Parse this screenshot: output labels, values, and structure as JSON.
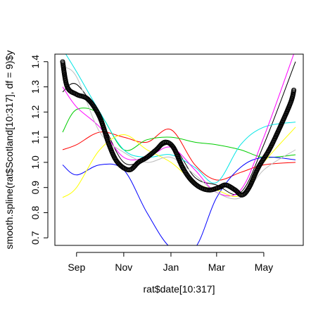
{
  "chart_data": {
    "type": "line",
    "title": "",
    "xlabel": "rat$date[10:317]",
    "ylabel": "smooth.spline(rat$Scotland[10:317], df = 9)$y",
    "x_axis": {
      "unit": "date",
      "ticks": [
        {
          "label": "Sep",
          "date": "2020-09-01"
        },
        {
          "label": "Nov",
          "date": "2020-11-01"
        },
        {
          "label": "Jan",
          "date": "2021-01-01"
        },
        {
          "label": "Mar",
          "date": "2021-03-01"
        },
        {
          "label": "May",
          "date": "2021-05-01"
        }
      ],
      "range": [
        "2020-08-04",
        "2021-06-21"
      ]
    },
    "y_axis": {
      "ticks": [
        "0.7",
        "0.8",
        "0.9",
        "1.0",
        "1.1",
        "1.2",
        "1.3",
        "1.4"
      ],
      "range": [
        0.67,
        1.43
      ]
    },
    "grid": false,
    "legend": "none",
    "points_series": {
      "marker": "open-circle",
      "color": "#000000",
      "x": [
        "2020-08-14",
        "2020-08-20",
        "2020-09-01",
        "2020-09-16",
        "2020-10-01",
        "2020-10-13",
        "2020-10-24",
        "2020-11-08",
        "2020-11-20",
        "2020-12-01",
        "2020-12-13",
        "2020-12-24",
        "2021-01-04",
        "2021-01-16",
        "2021-01-27",
        "2021-02-08",
        "2021-02-20",
        "2021-03-04",
        "2021-03-13",
        "2021-03-25",
        "2021-04-03",
        "2021-04-12",
        "2021-04-24",
        "2021-05-08",
        "2021-05-22",
        "2021-06-05",
        "2021-06-09"
      ],
      "y": [
        1.4,
        1.3,
        1.27,
        1.25,
        1.18,
        1.07,
        1.0,
        0.97,
        1.0,
        1.02,
        1.05,
        1.08,
        1.06,
        0.98,
        0.93,
        0.9,
        0.89,
        0.9,
        0.91,
        0.89,
        0.87,
        0.9,
        0.98,
        1.05,
        1.14,
        1.24,
        1.29
      ]
    },
    "series": [
      {
        "color": "#000000",
        "x": [
          "2020-08-14",
          "2020-09-01",
          "2020-10-01",
          "2020-11-01",
          "2020-12-01",
          "2021-01-01",
          "2021-02-01",
          "2021-03-01",
          "2021-04-01",
          "2021-05-01",
          "2021-06-11"
        ],
        "y": [
          1.28,
          1.31,
          1.18,
          1.0,
          1.02,
          1.07,
          0.94,
          0.91,
          0.88,
          1.07,
          1.4
        ]
      },
      {
        "color": "#FF0000",
        "x": [
          "2020-08-14",
          "2020-09-01",
          "2020-10-01",
          "2020-11-01",
          "2020-12-01",
          "2021-01-01",
          "2021-02-01",
          "2021-03-01",
          "2021-04-01",
          "2021-05-01",
          "2021-06-11"
        ],
        "y": [
          1.05,
          1.07,
          1.12,
          1.1,
          1.08,
          1.13,
          0.99,
          0.93,
          0.96,
          0.99,
          1.0
        ]
      },
      {
        "color": "#00CD00",
        "x": [
          "2020-08-14",
          "2020-09-01",
          "2020-10-01",
          "2020-11-01",
          "2020-12-01",
          "2021-01-01",
          "2021-02-01",
          "2021-03-01",
          "2021-04-01",
          "2021-05-01",
          "2021-06-11"
        ],
        "y": [
          1.12,
          1.21,
          1.19,
          1.05,
          1.09,
          1.1,
          1.08,
          1.07,
          1.05,
          1.02,
          1.03
        ]
      },
      {
        "color": "#0000FF",
        "x": [
          "2020-08-14",
          "2020-09-01",
          "2020-10-01",
          "2020-11-01",
          "2020-12-01",
          "2021-01-01",
          "2021-02-01",
          "2021-03-01",
          "2021-04-01",
          "2021-05-01",
          "2021-06-11"
        ],
        "y": [
          0.99,
          0.95,
          0.99,
          0.97,
          0.8,
          0.66,
          0.66,
          0.86,
          0.98,
          1.02,
          1.01
        ]
      },
      {
        "color": "#00E5E5",
        "x": [
          "2020-08-14",
          "2020-09-01",
          "2020-10-01",
          "2020-11-01",
          "2020-12-01",
          "2021-01-01",
          "2021-02-01",
          "2021-03-01",
          "2021-04-01",
          "2021-05-01",
          "2021-06-11"
        ],
        "y": [
          1.45,
          1.36,
          1.2,
          1.05,
          1.02,
          1.03,
          0.98,
          0.92,
          1.07,
          1.14,
          1.16
        ]
      },
      {
        "color": "#FF00FF",
        "x": [
          "2020-08-14",
          "2020-09-01",
          "2020-10-01",
          "2020-11-01",
          "2020-12-01",
          "2021-01-01",
          "2021-02-01",
          "2021-03-01",
          "2021-04-01",
          "2021-05-01",
          "2021-06-11"
        ],
        "y": [
          1.3,
          1.22,
          1.14,
          1.02,
          1.02,
          1.06,
          0.97,
          0.88,
          0.89,
          1.1,
          1.45
        ]
      },
      {
        "color": "#FFFF00",
        "x": [
          "2020-08-14",
          "2020-09-01",
          "2020-10-01",
          "2020-11-01",
          "2020-12-01",
          "2021-01-01",
          "2021-02-01",
          "2021-03-01",
          "2021-04-01",
          "2021-05-01",
          "2021-06-11"
        ],
        "y": [
          0.86,
          0.9,
          1.05,
          1.11,
          1.05,
          1.0,
          0.92,
          0.89,
          0.87,
          1.0,
          1.14
        ]
      },
      {
        "color": "#BEBEBE",
        "x": [
          "2020-08-14",
          "2020-09-01",
          "2020-10-01",
          "2020-11-01",
          "2020-12-01",
          "2021-01-01",
          "2021-02-01",
          "2021-03-01",
          "2021-04-01",
          "2021-05-01",
          "2021-06-11"
        ],
        "y": [
          1.38,
          1.34,
          1.12,
          1.04,
          1.0,
          1.02,
          0.95,
          0.88,
          0.86,
          0.97,
          1.05
        ]
      }
    ]
  }
}
